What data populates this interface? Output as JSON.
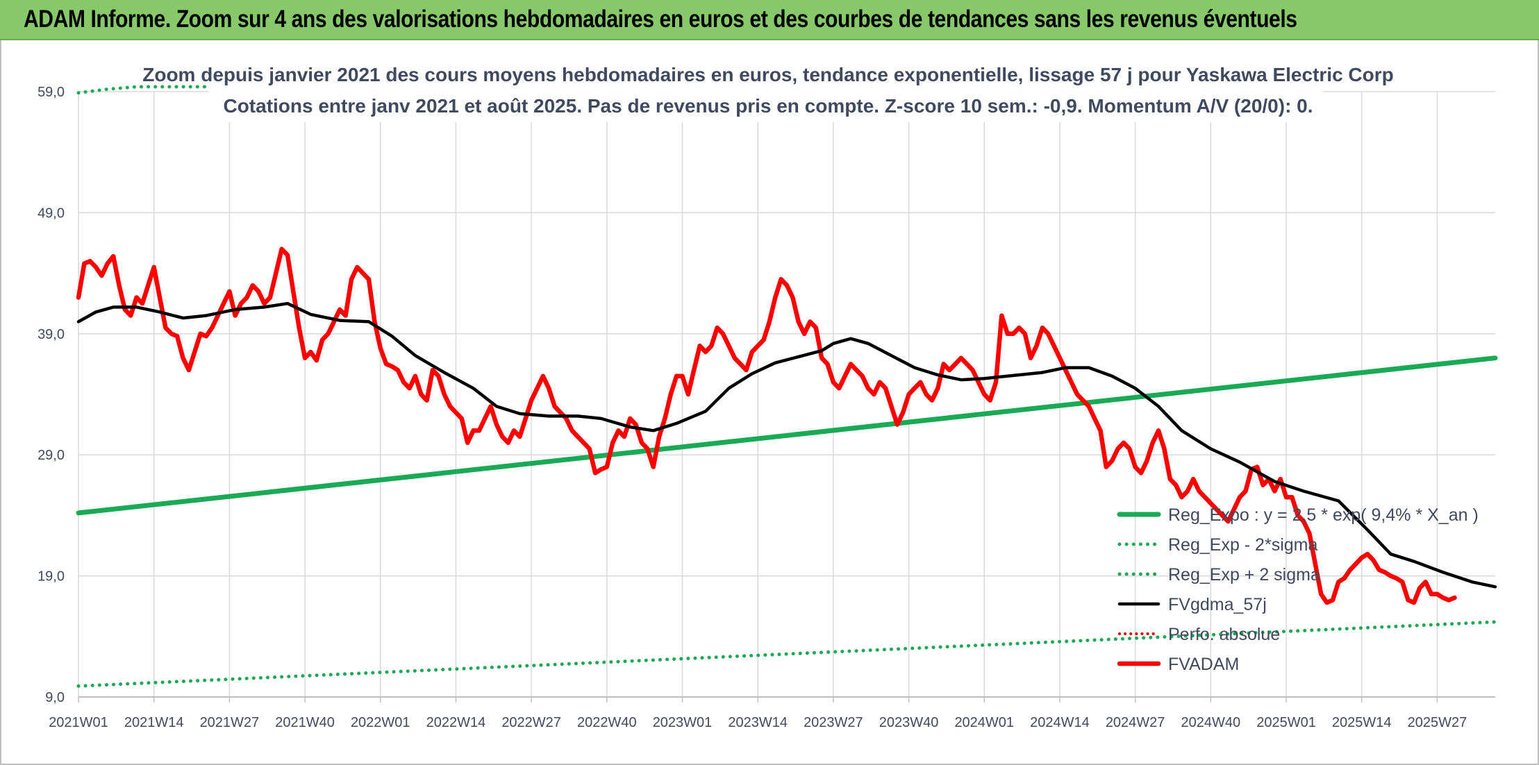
{
  "header": {
    "title": "ADAM Informe. Zoom sur 4 ans des valorisations hebdomadaires en euros et des courbes de tendances sans les revenus éventuels"
  },
  "colors": {
    "banner": "#86c86a",
    "reg_expo": "#1aaa55",
    "sigma": "#1aaa55",
    "fvgdma": "#000000",
    "perfo": "#e00000",
    "fvadam": "#ff0000",
    "grid": "#d9d9d9",
    "text": "#404a5e"
  },
  "chart_data": {
    "type": "line",
    "title": "Zoom depuis janvier 2021 des cours moyens hebdomadaires en euros, tendance exponentielle, lissage 57 j pour Yaskawa Electric Corp",
    "subtitle": "Cotations entre janv 2021 et août 2025. Pas de revenus pris en compte. Z-score 10 sem.: -0,9. Momentum A/V (20/0): 0.",
    "xlabel": "",
    "ylabel": "",
    "ylim": [
      9,
      59
    ],
    "yticks": [
      "9,0",
      "19,0",
      "29,0",
      "39,0",
      "49,0",
      "59,0"
    ],
    "ytick_values": [
      9,
      19,
      29,
      39,
      49,
      59
    ],
    "xticks": [
      "2021W01",
      "2021W14",
      "2021W27",
      "2021W40",
      "2022W01",
      "2022W14",
      "2022W27",
      "2022W40",
      "2023W01",
      "2023W14",
      "2023W27",
      "2023W40",
      "2024W01",
      "2024W14",
      "2024W27",
      "2024W40",
      "2025W01",
      "2025W14",
      "2025W27"
    ],
    "x_range_weeks": [
      0,
      244
    ],
    "grid": true,
    "legend_position": "bottom-right",
    "series": [
      {
        "name": "Reg_Expo : y = 2,5 * exp( 9,4% *  X_an )",
        "style": "solid-thick",
        "points": [
          [
            0,
            24.2
          ],
          [
            244,
            37.0
          ]
        ]
      },
      {
        "name": "Reg_Exp - 2*sigma",
        "style": "dotted",
        "points": [
          [
            0,
            9.9
          ],
          [
            244,
            15.2
          ]
        ]
      },
      {
        "name": "Reg_Exp + 2 sigma",
        "style": "dotted",
        "points": [
          [
            0,
            58.9
          ],
          [
            5,
            59.2
          ],
          [
            10,
            59.4
          ],
          [
            22,
            59.4
          ]
        ]
      },
      {
        "name": "FVgdma_57j",
        "style": "solid",
        "points": [
          [
            0,
            40.0
          ],
          [
            3,
            40.8
          ],
          [
            6,
            41.2
          ],
          [
            10,
            41.2
          ],
          [
            14,
            40.8
          ],
          [
            18,
            40.3
          ],
          [
            22,
            40.5
          ],
          [
            27,
            41.0
          ],
          [
            32,
            41.2
          ],
          [
            36,
            41.5
          ],
          [
            40,
            40.6
          ],
          [
            45,
            40.1
          ],
          [
            50,
            40.0
          ],
          [
            54,
            38.8
          ],
          [
            58,
            37.2
          ],
          [
            63,
            35.8
          ],
          [
            68,
            34.5
          ],
          [
            72,
            33.0
          ],
          [
            76,
            32.4
          ],
          [
            81,
            32.2
          ],
          [
            86,
            32.2
          ],
          [
            90,
            32.0
          ],
          [
            95,
            31.3
          ],
          [
            99,
            31.0
          ],
          [
            103,
            31.6
          ],
          [
            108,
            32.6
          ],
          [
            112,
            34.5
          ],
          [
            116,
            35.7
          ],
          [
            120,
            36.6
          ],
          [
            124,
            37.1
          ],
          [
            128,
            37.6
          ],
          [
            130,
            38.2
          ],
          [
            133,
            38.6
          ],
          [
            136,
            38.2
          ],
          [
            140,
            37.2
          ],
          [
            144,
            36.2
          ],
          [
            148,
            35.6
          ],
          [
            152,
            35.2
          ],
          [
            156,
            35.3
          ],
          [
            160,
            35.5
          ],
          [
            166,
            35.8
          ],
          [
            170,
            36.2
          ],
          [
            174,
            36.2
          ],
          [
            178,
            35.5
          ],
          [
            182,
            34.5
          ],
          [
            186,
            33.0
          ],
          [
            190,
            31.0
          ],
          [
            195,
            29.5
          ],
          [
            200,
            28.4
          ],
          [
            206,
            26.8
          ],
          [
            211,
            26.0
          ],
          [
            217,
            25.2
          ],
          [
            222,
            22.8
          ],
          [
            226,
            20.8
          ],
          [
            230,
            20.2
          ],
          [
            235,
            19.3
          ],
          [
            240,
            18.5
          ],
          [
            244,
            18.1
          ]
        ]
      },
      {
        "name": "Perfo. absolue",
        "style": "dotted-red",
        "points": []
      },
      {
        "name": "FVADAM",
        "style": "solid-thick",
        "points": [
          [
            0,
            42.0
          ],
          [
            1,
            44.8
          ],
          [
            2,
            45.0
          ],
          [
            3,
            44.5
          ],
          [
            4,
            43.8
          ],
          [
            5,
            44.8
          ],
          [
            6,
            45.4
          ],
          [
            7,
            43.0
          ],
          [
            8,
            41.0
          ],
          [
            9,
            40.5
          ],
          [
            10,
            42.0
          ],
          [
            11,
            41.5
          ],
          [
            12,
            43.0
          ],
          [
            13,
            44.5
          ],
          [
            14,
            42.0
          ],
          [
            15,
            39.5
          ],
          [
            16,
            39.0
          ],
          [
            17,
            38.8
          ],
          [
            18,
            37.0
          ],
          [
            19,
            36.0
          ],
          [
            20,
            37.5
          ],
          [
            21,
            39.0
          ],
          [
            22,
            38.8
          ],
          [
            23,
            39.5
          ],
          [
            24,
            40.5
          ],
          [
            25,
            41.5
          ],
          [
            26,
            42.5
          ],
          [
            27,
            40.5
          ],
          [
            28,
            41.5
          ],
          [
            29,
            42.0
          ],
          [
            30,
            43.0
          ],
          [
            31,
            42.5
          ],
          [
            32,
            41.5
          ],
          [
            33,
            42.0
          ],
          [
            34,
            44.0
          ],
          [
            35,
            46.0
          ],
          [
            36,
            45.5
          ],
          [
            37,
            42.5
          ],
          [
            38,
            39.5
          ],
          [
            39,
            37.0
          ],
          [
            40,
            37.5
          ],
          [
            41,
            36.8
          ],
          [
            42,
            38.5
          ],
          [
            43,
            39.0
          ],
          [
            44,
            40.0
          ],
          [
            45,
            41.0
          ],
          [
            46,
            40.5
          ],
          [
            47,
            43.5
          ],
          [
            48,
            44.5
          ],
          [
            49,
            44.0
          ],
          [
            50,
            43.5
          ],
          [
            51,
            40.0
          ],
          [
            52,
            37.8
          ],
          [
            53,
            36.5
          ],
          [
            54,
            36.3
          ],
          [
            55,
            36.0
          ],
          [
            56,
            35.0
          ],
          [
            57,
            34.5
          ],
          [
            58,
            35.5
          ],
          [
            59,
            34.0
          ],
          [
            60,
            33.5
          ],
          [
            61,
            36.0
          ],
          [
            62,
            35.5
          ],
          [
            63,
            34.0
          ],
          [
            64,
            33.0
          ],
          [
            65,
            32.5
          ],
          [
            66,
            32.0
          ],
          [
            67,
            30.0
          ],
          [
            68,
            31.0
          ],
          [
            69,
            31.0
          ],
          [
            70,
            32.0
          ],
          [
            71,
            33.0
          ],
          [
            72,
            31.5
          ],
          [
            73,
            30.5
          ],
          [
            74,
            30.0
          ],
          [
            75,
            31.0
          ],
          [
            76,
            30.5
          ],
          [
            77,
            32.0
          ],
          [
            78,
            33.5
          ],
          [
            79,
            34.5
          ],
          [
            80,
            35.5
          ],
          [
            81,
            34.5
          ],
          [
            82,
            33.0
          ],
          [
            83,
            32.5
          ],
          [
            84,
            32.0
          ],
          [
            85,
            31.0
          ],
          [
            86,
            30.5
          ],
          [
            87,
            30.0
          ],
          [
            88,
            29.5
          ],
          [
            89,
            27.5
          ],
          [
            90,
            27.8
          ],
          [
            91,
            28.0
          ],
          [
            92,
            30.0
          ],
          [
            93,
            31.0
          ],
          [
            94,
            30.5
          ],
          [
            95,
            32.0
          ],
          [
            96,
            31.5
          ],
          [
            97,
            30.0
          ],
          [
            98,
            29.5
          ],
          [
            99,
            28.0
          ],
          [
            100,
            30.5
          ],
          [
            101,
            32.0
          ],
          [
            102,
            34.0
          ],
          [
            103,
            35.5
          ],
          [
            104,
            35.5
          ],
          [
            105,
            34.0
          ],
          [
            106,
            36.0
          ],
          [
            107,
            38.0
          ],
          [
            108,
            37.5
          ],
          [
            109,
            38.0
          ],
          [
            110,
            39.5
          ],
          [
            111,
            39.0
          ],
          [
            112,
            38.0
          ],
          [
            113,
            37.0
          ],
          [
            114,
            36.5
          ],
          [
            115,
            36.0
          ],
          [
            116,
            37.5
          ],
          [
            117,
            38.0
          ],
          [
            118,
            38.5
          ],
          [
            119,
            40.0
          ],
          [
            120,
            42.0
          ],
          [
            121,
            43.5
          ],
          [
            122,
            43.0
          ],
          [
            123,
            42.0
          ],
          [
            124,
            40.0
          ],
          [
            125,
            39.0
          ],
          [
            126,
            40.0
          ],
          [
            127,
            39.5
          ],
          [
            128,
            37.0
          ],
          [
            129,
            36.5
          ],
          [
            130,
            35.0
          ],
          [
            131,
            34.5
          ],
          [
            132,
            35.5
          ],
          [
            133,
            36.5
          ],
          [
            134,
            36.0
          ],
          [
            135,
            35.5
          ],
          [
            136,
            34.5
          ],
          [
            137,
            34.0
          ],
          [
            138,
            35.0
          ],
          [
            139,
            34.5
          ],
          [
            140,
            33.0
          ],
          [
            141,
            31.5
          ],
          [
            142,
            32.5
          ],
          [
            143,
            34.0
          ],
          [
            144,
            34.5
          ],
          [
            145,
            35.0
          ],
          [
            146,
            34.0
          ],
          [
            147,
            33.5
          ],
          [
            148,
            34.5
          ],
          [
            149,
            36.5
          ],
          [
            150,
            36.0
          ],
          [
            151,
            36.5
          ],
          [
            152,
            37.0
          ],
          [
            153,
            36.5
          ],
          [
            154,
            36.0
          ],
          [
            155,
            35.0
          ],
          [
            156,
            34.0
          ],
          [
            157,
            33.5
          ],
          [
            158,
            35.0
          ],
          [
            159,
            40.5
          ],
          [
            160,
            39.0
          ],
          [
            161,
            39.0
          ],
          [
            162,
            39.5
          ],
          [
            163,
            39.0
          ],
          [
            164,
            37.0
          ],
          [
            165,
            38.0
          ],
          [
            166,
            39.5
          ],
          [
            167,
            39.0
          ],
          [
            168,
            38.0
          ],
          [
            169,
            37.0
          ],
          [
            170,
            36.0
          ],
          [
            171,
            35.0
          ],
          [
            172,
            34.0
          ],
          [
            173,
            33.5
          ],
          [
            174,
            33.0
          ],
          [
            175,
            32.0
          ],
          [
            176,
            31.0
          ],
          [
            177,
            28.0
          ],
          [
            178,
            28.5
          ],
          [
            179,
            29.5
          ],
          [
            180,
            30.0
          ],
          [
            181,
            29.5
          ],
          [
            182,
            28.0
          ],
          [
            183,
            27.5
          ],
          [
            184,
            28.5
          ],
          [
            185,
            30.0
          ],
          [
            186,
            31.0
          ],
          [
            187,
            29.5
          ],
          [
            188,
            27.0
          ],
          [
            189,
            26.5
          ],
          [
            190,
            25.5
          ],
          [
            191,
            26.0
          ],
          [
            192,
            27.0
          ],
          [
            193,
            26.0
          ],
          [
            194,
            25.5
          ],
          [
            195,
            25.0
          ],
          [
            196,
            24.5
          ],
          [
            197,
            24.0
          ],
          [
            198,
            23.5
          ],
          [
            199,
            24.5
          ],
          [
            200,
            25.5
          ],
          [
            201,
            26.0
          ],
          [
            202,
            27.8
          ],
          [
            203,
            28.0
          ],
          [
            204,
            26.5
          ],
          [
            205,
            27.0
          ],
          [
            206,
            26.0
          ],
          [
            207,
            27.0
          ],
          [
            208,
            25.5
          ],
          [
            209,
            25.5
          ],
          [
            210,
            24.0
          ],
          [
            211,
            23.5
          ],
          [
            212,
            22.5
          ],
          [
            213,
            20.0
          ],
          [
            214,
            17.5
          ],
          [
            215,
            16.8
          ],
          [
            216,
            17.0
          ],
          [
            217,
            18.5
          ],
          [
            218,
            18.8
          ],
          [
            219,
            19.5
          ],
          [
            220,
            20.0
          ],
          [
            221,
            20.5
          ],
          [
            222,
            20.8
          ],
          [
            223,
            20.3
          ],
          [
            224,
            19.5
          ],
          [
            225,
            19.3
          ],
          [
            226,
            19.0
          ],
          [
            227,
            18.8
          ],
          [
            228,
            18.5
          ],
          [
            229,
            17.0
          ],
          [
            230,
            16.8
          ],
          [
            231,
            18.0
          ],
          [
            232,
            18.5
          ],
          [
            233,
            17.5
          ],
          [
            234,
            17.5
          ],
          [
            235,
            17.2
          ],
          [
            236,
            17.0
          ],
          [
            237,
            17.2
          ]
        ]
      }
    ]
  }
}
